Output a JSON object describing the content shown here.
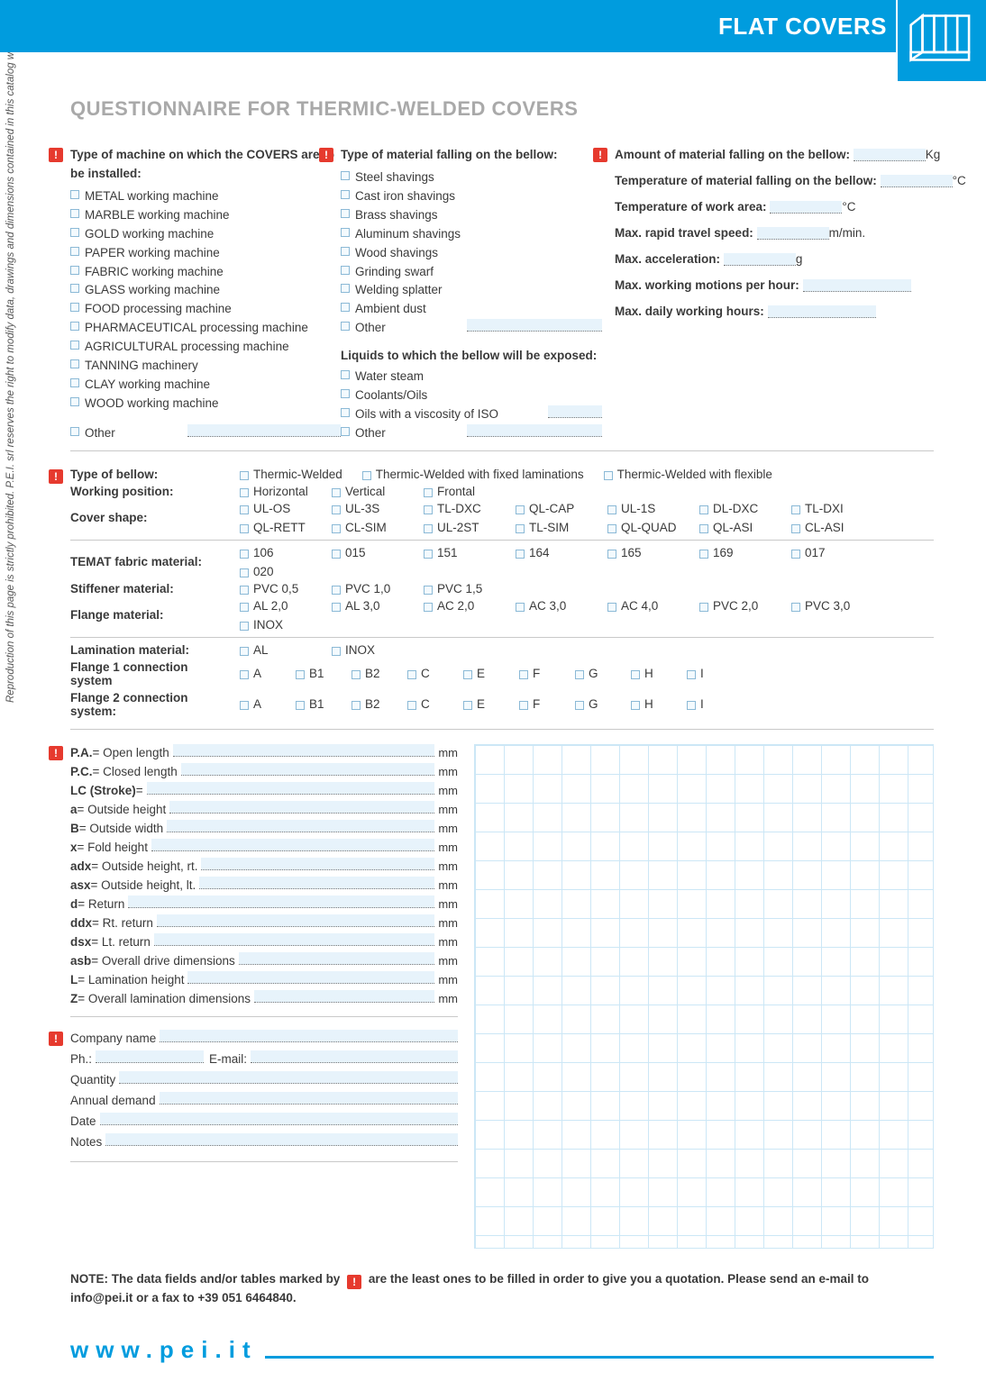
{
  "header": {
    "banner": "FLAT COVERS"
  },
  "side_notice": "Reproduction of this page is strictly prohibited. P.E.I. srl reserves the right to modify data, drawings and dimensions contained in this catalog without prior notice.",
  "title": "QUESTIONNAIRE FOR THERMIC-WELDED COVERS",
  "col1": {
    "heading": "Type of machine on which the COVERS are to be installed:",
    "options": [
      "METAL working machine",
      "MARBLE working machine",
      "GOLD working machine",
      "PAPER working machine",
      "FABRIC working machine",
      "GLASS working machine",
      "FOOD processing machine",
      "PHARMACEUTICAL processing machine",
      "AGRICULTURAL processing machine",
      "TANNING machinery",
      "CLAY working machine",
      "WOOD working machine"
    ],
    "other": "Other"
  },
  "col2": {
    "heading": "Type of material falling on the bellow:",
    "options": [
      "Steel shavings",
      "Cast iron shavings",
      "Brass shavings",
      "Aluminum shavings",
      "Wood shavings",
      "Grinding swarf",
      "Welding splatter",
      "Ambient dust"
    ],
    "other": "Other",
    "sub_heading": "Liquids to which the bellow will be exposed:",
    "sub_options": [
      "Water steam",
      "Coolants/Oils"
    ],
    "iso_label": "Oils with a viscosity of ISO",
    "other2": "Other"
  },
  "col3": {
    "params": [
      {
        "label": "Amount of material falling on the bellow:",
        "unit": "Kg"
      },
      {
        "label": "Temperature of material falling on the bellow:",
        "unit": "°C"
      },
      {
        "label": "Temperature of work area:",
        "unit": "°C"
      },
      {
        "label": "Max. rapid travel speed:",
        "unit": "m/min."
      },
      {
        "label": "Max. acceleration:",
        "unit": "g"
      },
      {
        "label": "Max. working motions per hour:",
        "unit": ""
      },
      {
        "label": "Max. daily working hours:",
        "unit": ""
      }
    ]
  },
  "spec": {
    "rows": [
      {
        "label": "Type of bellow:",
        "options": [
          "Thermic-Welded",
          "Thermic-Welded with fixed laminations",
          "Thermic-Welded with flexible"
        ]
      },
      {
        "label": "Working position:",
        "options": [
          "Horizontal",
          "Vertical",
          "Frontal"
        ]
      },
      {
        "label": "Cover shape:",
        "options": [
          "UL-OS",
          "UL-3S",
          "TL-DXC",
          "QL-CAP",
          "UL-1S",
          "DL-DXC",
          "TL-DXI",
          "QL-RETT",
          "CL-SIM",
          "UL-2ST",
          "TL-SIM",
          "QL-QUAD",
          "QL-ASI",
          "CL-ASI"
        ]
      },
      {
        "label": "TEMAT fabric material:",
        "options": [
          "106",
          "015",
          "151",
          "164",
          "165",
          "169",
          "017",
          "020"
        ],
        "rule": true
      },
      {
        "label": "Stiffener material:",
        "options": [
          "PVC 0,5",
          "PVC 1,0",
          "PVC 1,5"
        ]
      },
      {
        "label": "Flange material:",
        "options": [
          "AL 2,0",
          "AL 3,0",
          "AC 2,0",
          "AC 3,0",
          "AC 4,0",
          "PVC 2,0",
          "PVC 3,0",
          "INOX"
        ]
      },
      {
        "label": "Lamination material:",
        "options": [
          "AL",
          "INOX"
        ],
        "rule": true
      },
      {
        "label": "Flange 1 connection system",
        "options": [
          "A",
          "B1",
          "B2",
          "C",
          "E",
          "F",
          "G",
          "H",
          "I"
        ],
        "conn": true
      },
      {
        "label": "Flange 2 connection system:",
        "options": [
          "A",
          "B1",
          "B2",
          "C",
          "E",
          "F",
          "G",
          "H",
          "I"
        ],
        "conn": true
      }
    ]
  },
  "dims": [
    {
      "k": "P.A.",
      "d": "Open length",
      "u": "mm"
    },
    {
      "k": "P.C.",
      "d": "Closed length",
      "u": "mm"
    },
    {
      "k": "LC (Stroke)",
      "d": "",
      "u": "mm"
    },
    {
      "k": "a",
      "d": "Outside height",
      "u": "mm"
    },
    {
      "k": "B",
      "d": "Outside width",
      "u": "mm"
    },
    {
      "k": "x",
      "d": "Fold height",
      "u": "mm"
    },
    {
      "k": "adx",
      "d": "Outside height, rt.",
      "u": "mm"
    },
    {
      "k": "asx",
      "d": "Outside height, lt.",
      "u": "mm"
    },
    {
      "k": "d",
      "d": "Return",
      "u": "mm"
    },
    {
      "k": "ddx",
      "d": "Rt. return",
      "u": "mm"
    },
    {
      "k": "dsx",
      "d": "Lt. return",
      "u": "mm"
    },
    {
      "k": "asb",
      "d": "Overall drive dimensions",
      "u": "mm"
    },
    {
      "k": "L",
      "d": "Lamination height",
      "u": "mm"
    },
    {
      "k": "Z",
      "d": "Overall lamination dimensions",
      "u": "mm"
    }
  ],
  "contact": {
    "lines": [
      "Company name",
      "Ph.:",
      "E-mail:",
      "Quantity",
      "Annual demand",
      "Date",
      "Notes"
    ]
  },
  "note": {
    "pre": "NOTE: The data fields and/or tables marked by",
    "post": "are the least ones to be filled in order to give you a quotation. Please send an e-mail to info@pei.it or a fax to +39 051 6464840."
  },
  "footer": {
    "url": "www.pei.it"
  }
}
